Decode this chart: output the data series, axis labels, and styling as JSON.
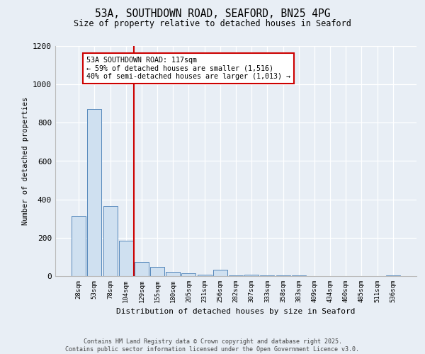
{
  "title1": "53A, SOUTHDOWN ROAD, SEAFORD, BN25 4PG",
  "title2": "Size of property relative to detached houses in Seaford",
  "xlabel": "Distribution of detached houses by size in Seaford",
  "ylabel": "Number of detached properties",
  "categories": [
    "28sqm",
    "53sqm",
    "78sqm",
    "104sqm",
    "129sqm",
    "155sqm",
    "180sqm",
    "205sqm",
    "231sqm",
    "256sqm",
    "282sqm",
    "307sqm",
    "333sqm",
    "358sqm",
    "383sqm",
    "409sqm",
    "434sqm",
    "460sqm",
    "485sqm",
    "511sqm",
    "536sqm"
  ],
  "values": [
    315,
    870,
    365,
    185,
    75,
    48,
    22,
    14,
    8,
    35,
    5,
    8,
    5,
    3,
    3,
    0,
    0,
    0,
    0,
    0,
    3
  ],
  "bar_color": "#cfe0f0",
  "bar_edge_color": "#5588bb",
  "vline_x": 3.5,
  "vline_color": "#cc0000",
  "annotation_text": "53A SOUTHDOWN ROAD: 117sqm\n← 59% of detached houses are smaller (1,516)\n40% of semi-detached houses are larger (1,013) →",
  "annotation_box_color": "#ffffff",
  "annotation_box_edge": "#cc0000",
  "ylim": [
    0,
    1200
  ],
  "yticks": [
    0,
    200,
    400,
    600,
    800,
    1000,
    1200
  ],
  "background_color": "#e8eef5",
  "footer1": "Contains HM Land Registry data © Crown copyright and database right 2025.",
  "footer2": "Contains public sector information licensed under the Open Government Licence v3.0."
}
